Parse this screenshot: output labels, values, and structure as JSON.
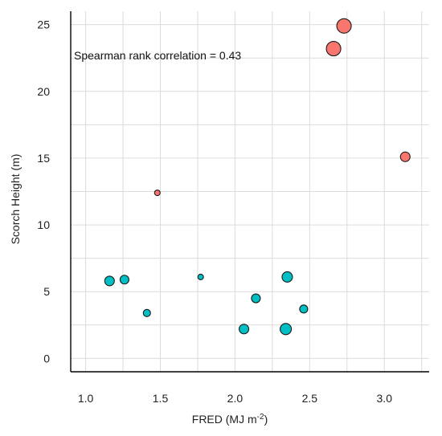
{
  "chart_data": {
    "type": "scatter",
    "xlabel": "FRED (MJ m",
    "xlabel_sup": "-2",
    "xlabel_suffix": ")",
    "ylabel": "Scorch Height (m)",
    "xlim": [
      0.9,
      3.3
    ],
    "ylim": [
      -1.0,
      26.0
    ],
    "x_ticks": [
      1.0,
      1.5,
      2.0,
      2.5,
      3.0
    ],
    "x_tick_labels": [
      "1.0",
      "1.5",
      "2.0",
      "2.5",
      "3.0"
    ],
    "y_ticks": [
      0,
      5,
      10,
      15,
      20,
      25
    ],
    "y_tick_labels": [
      "0",
      "5",
      "10",
      "15",
      "20",
      "25"
    ],
    "x_minor_grid": [
      1.25,
      1.75,
      2.25,
      2.75,
      3.25
    ],
    "y_minor_grid": [
      2.5,
      7.5,
      12.5,
      17.5,
      22.5
    ],
    "grid": true,
    "annotation": "Spearman rank correlation = 0.43",
    "colors": {
      "red_group": "#f8766d",
      "teal_group": "#00bfc4"
    },
    "points": [
      {
        "x": 1.16,
        "y": 5.8,
        "size": 6,
        "group": "teal_group"
      },
      {
        "x": 1.26,
        "y": 5.9,
        "size": 5.5,
        "group": "teal_group"
      },
      {
        "x": 1.41,
        "y": 3.4,
        "size": 4.5,
        "group": "teal_group"
      },
      {
        "x": 1.48,
        "y": 12.4,
        "size": 3.5,
        "group": "red_group"
      },
      {
        "x": 1.77,
        "y": 6.1,
        "size": 3.5,
        "group": "teal_group"
      },
      {
        "x": 2.06,
        "y": 2.2,
        "size": 6,
        "group": "teal_group"
      },
      {
        "x": 2.14,
        "y": 4.5,
        "size": 5.5,
        "group": "teal_group"
      },
      {
        "x": 2.34,
        "y": 2.2,
        "size": 7,
        "group": "teal_group"
      },
      {
        "x": 2.35,
        "y": 6.1,
        "size": 6.5,
        "group": "teal_group"
      },
      {
        "x": 2.46,
        "y": 3.7,
        "size": 5,
        "group": "teal_group"
      },
      {
        "x": 2.66,
        "y": 23.2,
        "size": 9,
        "group": "red_group"
      },
      {
        "x": 2.73,
        "y": 24.9,
        "size": 9,
        "group": "red_group"
      },
      {
        "x": 3.14,
        "y": 15.1,
        "size": 6,
        "group": "red_group"
      }
    ]
  }
}
